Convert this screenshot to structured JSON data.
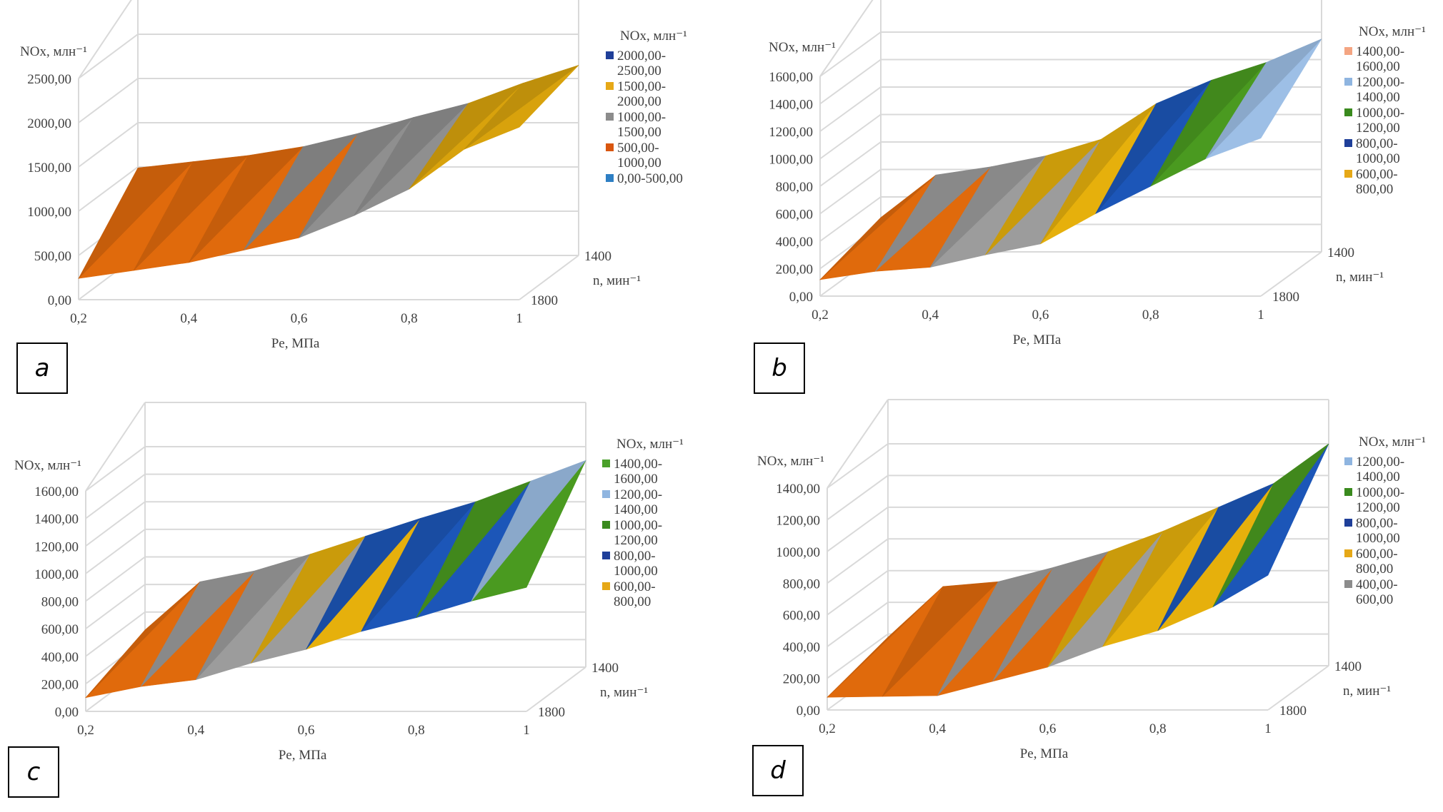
{
  "figure": {
    "panels": [
      "a",
      "b",
      "c",
      "d"
    ]
  },
  "chart_data": [
    {
      "panel": "a",
      "type": "surface",
      "zlabel": "NOx, млн⁻¹",
      "xlabel": "Pe, МПа",
      "ylabel": "n, мин⁻¹",
      "x_ticks": [
        "0,2",
        "0,4",
        "0,6",
        "0,8",
        "1"
      ],
      "y_ticks": [
        "1400",
        "1800"
      ],
      "z_ticks": [
        "0,00",
        "500,00",
        "1000,00",
        "1500,00",
        "2000,00",
        "2500,00"
      ],
      "zlim": [
        0,
        2500
      ],
      "x": [
        0.2,
        0.3,
        0.4,
        0.5,
        0.6,
        0.7,
        0.8,
        0.9,
        1.0
      ],
      "series": [
        {
          "name": "1800",
          "values": [
            240,
            330,
            420,
            560,
            700,
            950,
            1250,
            1700,
            1950
          ]
        },
        {
          "name": "1400",
          "values": [
            990,
            1060,
            1130,
            1230,
            1380,
            1560,
            1720,
            1950,
            2150
          ]
        }
      ],
      "legend_title": "NOx, млн⁻¹",
      "legend": [
        {
          "label": "2000,00-2500,00",
          "color": "#1f3f99"
        },
        {
          "label": "1500,00-2000,00",
          "color": "#e6a817"
        },
        {
          "label": "1000,00-1500,00",
          "color": "#8c8c8c"
        },
        {
          "label": "500,00-1000,00",
          "color": "#d9560f"
        },
        {
          "label": "0,00-500,00",
          "color": "#2e7fc4"
        }
      ],
      "bands": [
        {
          "min": 0,
          "max": 500,
          "color": "#3f8fd0"
        },
        {
          "min": 500,
          "max": 1000,
          "color": "#e06a0c"
        },
        {
          "min": 1000,
          "max": 1500,
          "color": "#8f8f8f"
        },
        {
          "min": 1500,
          "max": 2000,
          "color": "#d8a20c"
        },
        {
          "min": 2000,
          "max": 2500,
          "color": "#1f3f99"
        }
      ],
      "legend_position": "right"
    },
    {
      "panel": "b",
      "type": "surface",
      "zlabel": "NOx, млн⁻¹",
      "xlabel": "Pe, МПа",
      "ylabel": "n, мин⁻¹",
      "x_ticks": [
        "0,2",
        "0,4",
        "0,6",
        "0,8",
        "1"
      ],
      "y_ticks": [
        "1400",
        "1800"
      ],
      "z_ticks": [
        "0,00",
        "200,00",
        "400,00",
        "600,00",
        "800,00",
        "1000,00",
        "1200,00",
        "1400,00",
        "1600,00"
      ],
      "zlim": [
        0,
        1600
      ],
      "x": [
        0.2,
        0.3,
        0.4,
        0.5,
        0.6,
        0.7,
        0.8,
        0.9,
        1.0
      ],
      "series": [
        {
          "name": "1800",
          "values": [
            120,
            180,
            210,
            300,
            380,
            600,
            800,
            1000,
            1150
          ]
        },
        {
          "name": "1400",
          "values": [
            250,
            560,
            620,
            700,
            820,
            1080,
            1250,
            1380,
            1550
          ]
        }
      ],
      "legend_title": "NOx, млн⁻¹",
      "legend": [
        {
          "label": "1400,00-1600,00",
          "color": "#f4a582"
        },
        {
          "label": "1200,00-1400,00",
          "color": "#8fb5e0"
        },
        {
          "label": "1000,00-1200,00",
          "color": "#3a8a1e"
        },
        {
          "label": "800,00-1000,00",
          "color": "#1f3f99"
        },
        {
          "label": "600,00-800,00",
          "color": "#e6a817"
        }
      ],
      "bands": [
        {
          "min": 0,
          "max": 200,
          "color": "#3f8fd0"
        },
        {
          "min": 200,
          "max": 400,
          "color": "#e06a0c"
        },
        {
          "min": 400,
          "max": 600,
          "color": "#9c9c9c"
        },
        {
          "min": 600,
          "max": 800,
          "color": "#e6b00c"
        },
        {
          "min": 800,
          "max": 1000,
          "color": "#1c56b8"
        },
        {
          "min": 1000,
          "max": 1200,
          "color": "#4a9a20"
        },
        {
          "min": 1200,
          "max": 1400,
          "color": "#9dbfe6"
        },
        {
          "min": 1400,
          "max": 1600,
          "color": "#f4a582"
        }
      ],
      "legend_position": "right"
    },
    {
      "panel": "c",
      "type": "surface",
      "zlabel": "NOx, млн⁻¹",
      "xlabel": "Pe, МПа",
      "ylabel": "n, мин⁻¹",
      "x_ticks": [
        "0,2",
        "0,4",
        "0,6",
        "0,8",
        "1"
      ],
      "y_ticks": [
        "1400",
        "1800"
      ],
      "z_ticks": [
        "0,00",
        "200,00",
        "400,00",
        "600,00",
        "800,00",
        "1000,00",
        "1200,00",
        "1400,00",
        "1600,00"
      ],
      "zlim": [
        0,
        1600
      ],
      "x": [
        0.2,
        0.3,
        0.4,
        0.5,
        0.6,
        0.7,
        0.8,
        0.9,
        1.0
      ],
      "series": [
        {
          "name": "1800",
          "values": [
            100,
            180,
            230,
            350,
            450,
            580,
            680,
            800,
            900
          ]
        },
        {
          "name": "1400",
          "values": [
            270,
            620,
            700,
            820,
            950,
            1080,
            1200,
            1350,
            1500
          ]
        }
      ],
      "legend_title": "NOx, млн⁻¹",
      "legend": [
        {
          "label": "1400,00-1600,00",
          "color": "#4aa02a"
        },
        {
          "label": "1200,00-1400,00",
          "color": "#8fb5e0"
        },
        {
          "label": "1000,00-1200,00",
          "color": "#3a8a1e"
        },
        {
          "label": "800,00-1000,00",
          "color": "#1f3f99"
        },
        {
          "label": "600,00-800,00",
          "color": "#e6a817"
        }
      ],
      "bands": [
        {
          "min": 0,
          "max": 200,
          "color": "#3f8fd0"
        },
        {
          "min": 200,
          "max": 400,
          "color": "#e06a0c"
        },
        {
          "min": 400,
          "max": 600,
          "color": "#9c9c9c"
        },
        {
          "min": 600,
          "max": 800,
          "color": "#e6b00c"
        },
        {
          "min": 800,
          "max": 1000,
          "color": "#1c56b8"
        },
        {
          "min": 1000,
          "max": 1200,
          "color": "#4a9a20"
        },
        {
          "min": 1200,
          "max": 1400,
          "color": "#9dbfe6"
        },
        {
          "min": 1400,
          "max": 1600,
          "color": "#4aa02a"
        }
      ],
      "legend_position": "right"
    },
    {
      "panel": "d",
      "type": "surface",
      "zlabel": "NOx, млн⁻¹",
      "xlabel": "Pe, МПа",
      "ylabel": "n, мин⁻¹",
      "x_ticks": [
        "0,2",
        "0,4",
        "0,6",
        "0,8",
        "1"
      ],
      "y_ticks": [
        "1400",
        "1800"
      ],
      "z_ticks": [
        "0,00",
        "200,00",
        "400,00",
        "600,00",
        "800,00",
        "1000,00",
        "1200,00",
        "1400,00"
      ],
      "zlim": [
        0,
        1400
      ],
      "x": [
        0.2,
        0.3,
        0.4,
        0.5,
        0.6,
        0.7,
        0.8,
        0.9,
        1.0
      ],
      "series": [
        {
          "name": "1800",
          "values": [
            80,
            85,
            90,
            180,
            270,
            400,
            500,
            650,
            850
          ]
        },
        {
          "name": "1400",
          "values": [
            180,
            500,
            530,
            620,
            720,
            850,
            1000,
            1150,
            1400
          ]
        }
      ],
      "legend_title": "NOx, млн⁻¹",
      "legend": [
        {
          "label": "1200,00-1400,00",
          "color": "#8fb5e0"
        },
        {
          "label": "1000,00-1200,00",
          "color": "#3a8a1e"
        },
        {
          "label": "800,00-1000,00",
          "color": "#1f3f99"
        },
        {
          "label": "600,00-800,00",
          "color": "#e6a817"
        },
        {
          "label": "400,00-600,00",
          "color": "#8c8c8c"
        }
      ],
      "bands": [
        {
          "min": 0,
          "max": 200,
          "color": "#3f8fd0"
        },
        {
          "min": 200,
          "max": 400,
          "color": "#e06a0c"
        },
        {
          "min": 400,
          "max": 600,
          "color": "#9c9c9c"
        },
        {
          "min": 600,
          "max": 800,
          "color": "#e6b00c"
        },
        {
          "min": 800,
          "max": 1000,
          "color": "#1c56b8"
        },
        {
          "min": 1000,
          "max": 1200,
          "color": "#4a9a20"
        },
        {
          "min": 1200,
          "max": 1400,
          "color": "#9dbfe6"
        }
      ],
      "legend_position": "right"
    }
  ]
}
